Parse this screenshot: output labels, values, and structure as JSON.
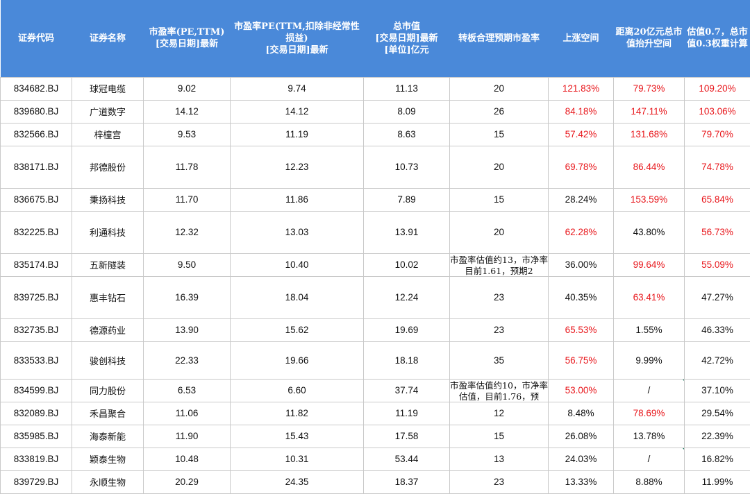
{
  "headers": [
    [
      "证券代码"
    ],
    [
      "证券名称"
    ],
    [
      "市盈率(PE,TTM)",
      "[交易日期]最新"
    ],
    [
      "市盈率PE(TTM,扣除非经常性",
      "损益)",
      "[交易日期]最新"
    ],
    [
      "总市值",
      "[交易日期]最新",
      "[单位]亿元"
    ],
    [
      "转板合理预期市盈率"
    ],
    [
      "上涨空间"
    ],
    [
      "距离20亿元总市",
      "值抬升空间"
    ],
    [
      "估值0.7，总市",
      "值0.3权重计算"
    ]
  ],
  "colors": {
    "header_bg": "#4a89d9",
    "header_text": "#ffffff",
    "positive_red": "#e8161b",
    "grid": "#c9c9c9",
    "corner_marker": "#1a7a5c"
  },
  "rows": [
    {
      "code": "834682.BJ",
      "name": "球冠电缆",
      "pe": "9.02",
      "pe_ex": "9.74",
      "mcap": "11.13",
      "target": "20",
      "upside": "121.83%",
      "upside_red": true,
      "gap": "79.73%",
      "gap_red": true,
      "weighted": "109.20%",
      "weighted_red": true
    },
    {
      "code": "839680.BJ",
      "name": "广道数字",
      "pe": "14.12",
      "pe_ex": "14.12",
      "mcap": "8.09",
      "target": "26",
      "upside": "84.18%",
      "upside_red": true,
      "gap": "147.11%",
      "gap_red": true,
      "weighted": "103.06%",
      "weighted_red": true
    },
    {
      "code": "832566.BJ",
      "name": "梓橦宫",
      "pe": "9.53",
      "pe_ex": "11.19",
      "mcap": "8.63",
      "target": "15",
      "upside": "57.42%",
      "upside_red": true,
      "gap": "131.68%",
      "gap_red": true,
      "weighted": "79.70%",
      "weighted_red": true
    },
    {
      "code": "838171.BJ",
      "name": "邦德股份",
      "pe": "11.78",
      "pe_ex": "12.23",
      "mcap": "10.73",
      "target": "20",
      "upside": "69.78%",
      "upside_red": true,
      "gap": "86.44%",
      "gap_red": true,
      "weighted": "74.78%",
      "weighted_red": true
    },
    {
      "code": "836675.BJ",
      "name": "秉扬科技",
      "pe": "11.70",
      "pe_ex": "11.86",
      "mcap": "7.89",
      "target": "15",
      "upside": "28.24%",
      "upside_red": false,
      "gap": "153.59%",
      "gap_red": true,
      "weighted": "65.84%",
      "weighted_red": true
    },
    {
      "code": "832225.BJ",
      "name": "利通科技",
      "pe": "12.32",
      "pe_ex": "13.03",
      "mcap": "13.91",
      "target": "20",
      "upside": "62.28%",
      "upside_red": true,
      "gap": "43.80%",
      "gap_red": false,
      "weighted": "56.73%",
      "weighted_red": true
    },
    {
      "code": "835174.BJ",
      "name": "五新隧装",
      "pe": "9.50",
      "pe_ex": "10.40",
      "mcap": "10.02",
      "target": "市盈率估值约13，市净率目前1.61，预期2",
      "target_note": true,
      "upside": "36.00%",
      "upside_red": false,
      "gap": "99.64%",
      "gap_red": true,
      "weighted": "55.09%",
      "weighted_red": true
    },
    {
      "code": "839725.BJ",
      "name": "惠丰钻石",
      "pe": "16.39",
      "pe_ex": "18.04",
      "mcap": "12.24",
      "target": "23",
      "upside": "40.35%",
      "upside_red": false,
      "gap": "63.41%",
      "gap_red": true,
      "weighted": "47.27%",
      "weighted_red": false
    },
    {
      "code": "832735.BJ",
      "name": "德源药业",
      "pe": "13.90",
      "pe_ex": "15.62",
      "mcap": "19.69",
      "target": "23",
      "upside": "65.53%",
      "upside_red": true,
      "gap": "1.55%",
      "gap_red": false,
      "weighted": "46.33%",
      "weighted_red": false
    },
    {
      "code": "833533.BJ",
      "name": "骏创科技",
      "pe": "22.33",
      "pe_ex": "19.66",
      "mcap": "18.18",
      "target": "35",
      "upside": "56.75%",
      "upside_red": true,
      "gap": "9.99%",
      "gap_red": false,
      "weighted": "42.72%",
      "weighted_red": false
    },
    {
      "code": "834599.BJ",
      "name": "同力股份",
      "pe": "6.53",
      "pe_ex": "6.60",
      "mcap": "37.74",
      "target": "市盈率估值约10，市净率估值，目前1.76，预",
      "target_note": true,
      "upside": "53.00%",
      "upside_red": true,
      "gap": "/",
      "gap_red": false,
      "gap_marker": true,
      "weighted": "37.10%",
      "weighted_red": false
    },
    {
      "code": "832089.BJ",
      "name": "禾昌聚合",
      "pe": "11.06",
      "pe_ex": "11.82",
      "mcap": "11.19",
      "target": "12",
      "upside": "8.48%",
      "upside_red": false,
      "gap": "78.69%",
      "gap_red": true,
      "weighted": "29.54%",
      "weighted_red": false
    },
    {
      "code": "835985.BJ",
      "name": "海泰新能",
      "pe": "11.90",
      "pe_ex": "15.43",
      "mcap": "17.58",
      "target": "15",
      "upside": "26.08%",
      "upside_red": false,
      "gap": "13.78%",
      "gap_red": false,
      "weighted": "22.39%",
      "weighted_red": false
    },
    {
      "code": "833819.BJ",
      "name": "颖泰生物",
      "pe": "10.48",
      "pe_ex": "10.31",
      "mcap": "53.44",
      "target": "13",
      "upside": "24.03%",
      "upside_red": false,
      "gap": "/",
      "gap_red": false,
      "gap_marker": true,
      "weighted": "16.82%",
      "weighted_red": false
    },
    {
      "code": "839729.BJ",
      "name": "永顺生物",
      "pe": "20.29",
      "pe_ex": "24.35",
      "mcap": "18.37",
      "target": "23",
      "upside": "13.33%",
      "upside_red": false,
      "gap": "8.88%",
      "gap_red": false,
      "weighted": "11.99%",
      "weighted_red": false
    }
  ]
}
